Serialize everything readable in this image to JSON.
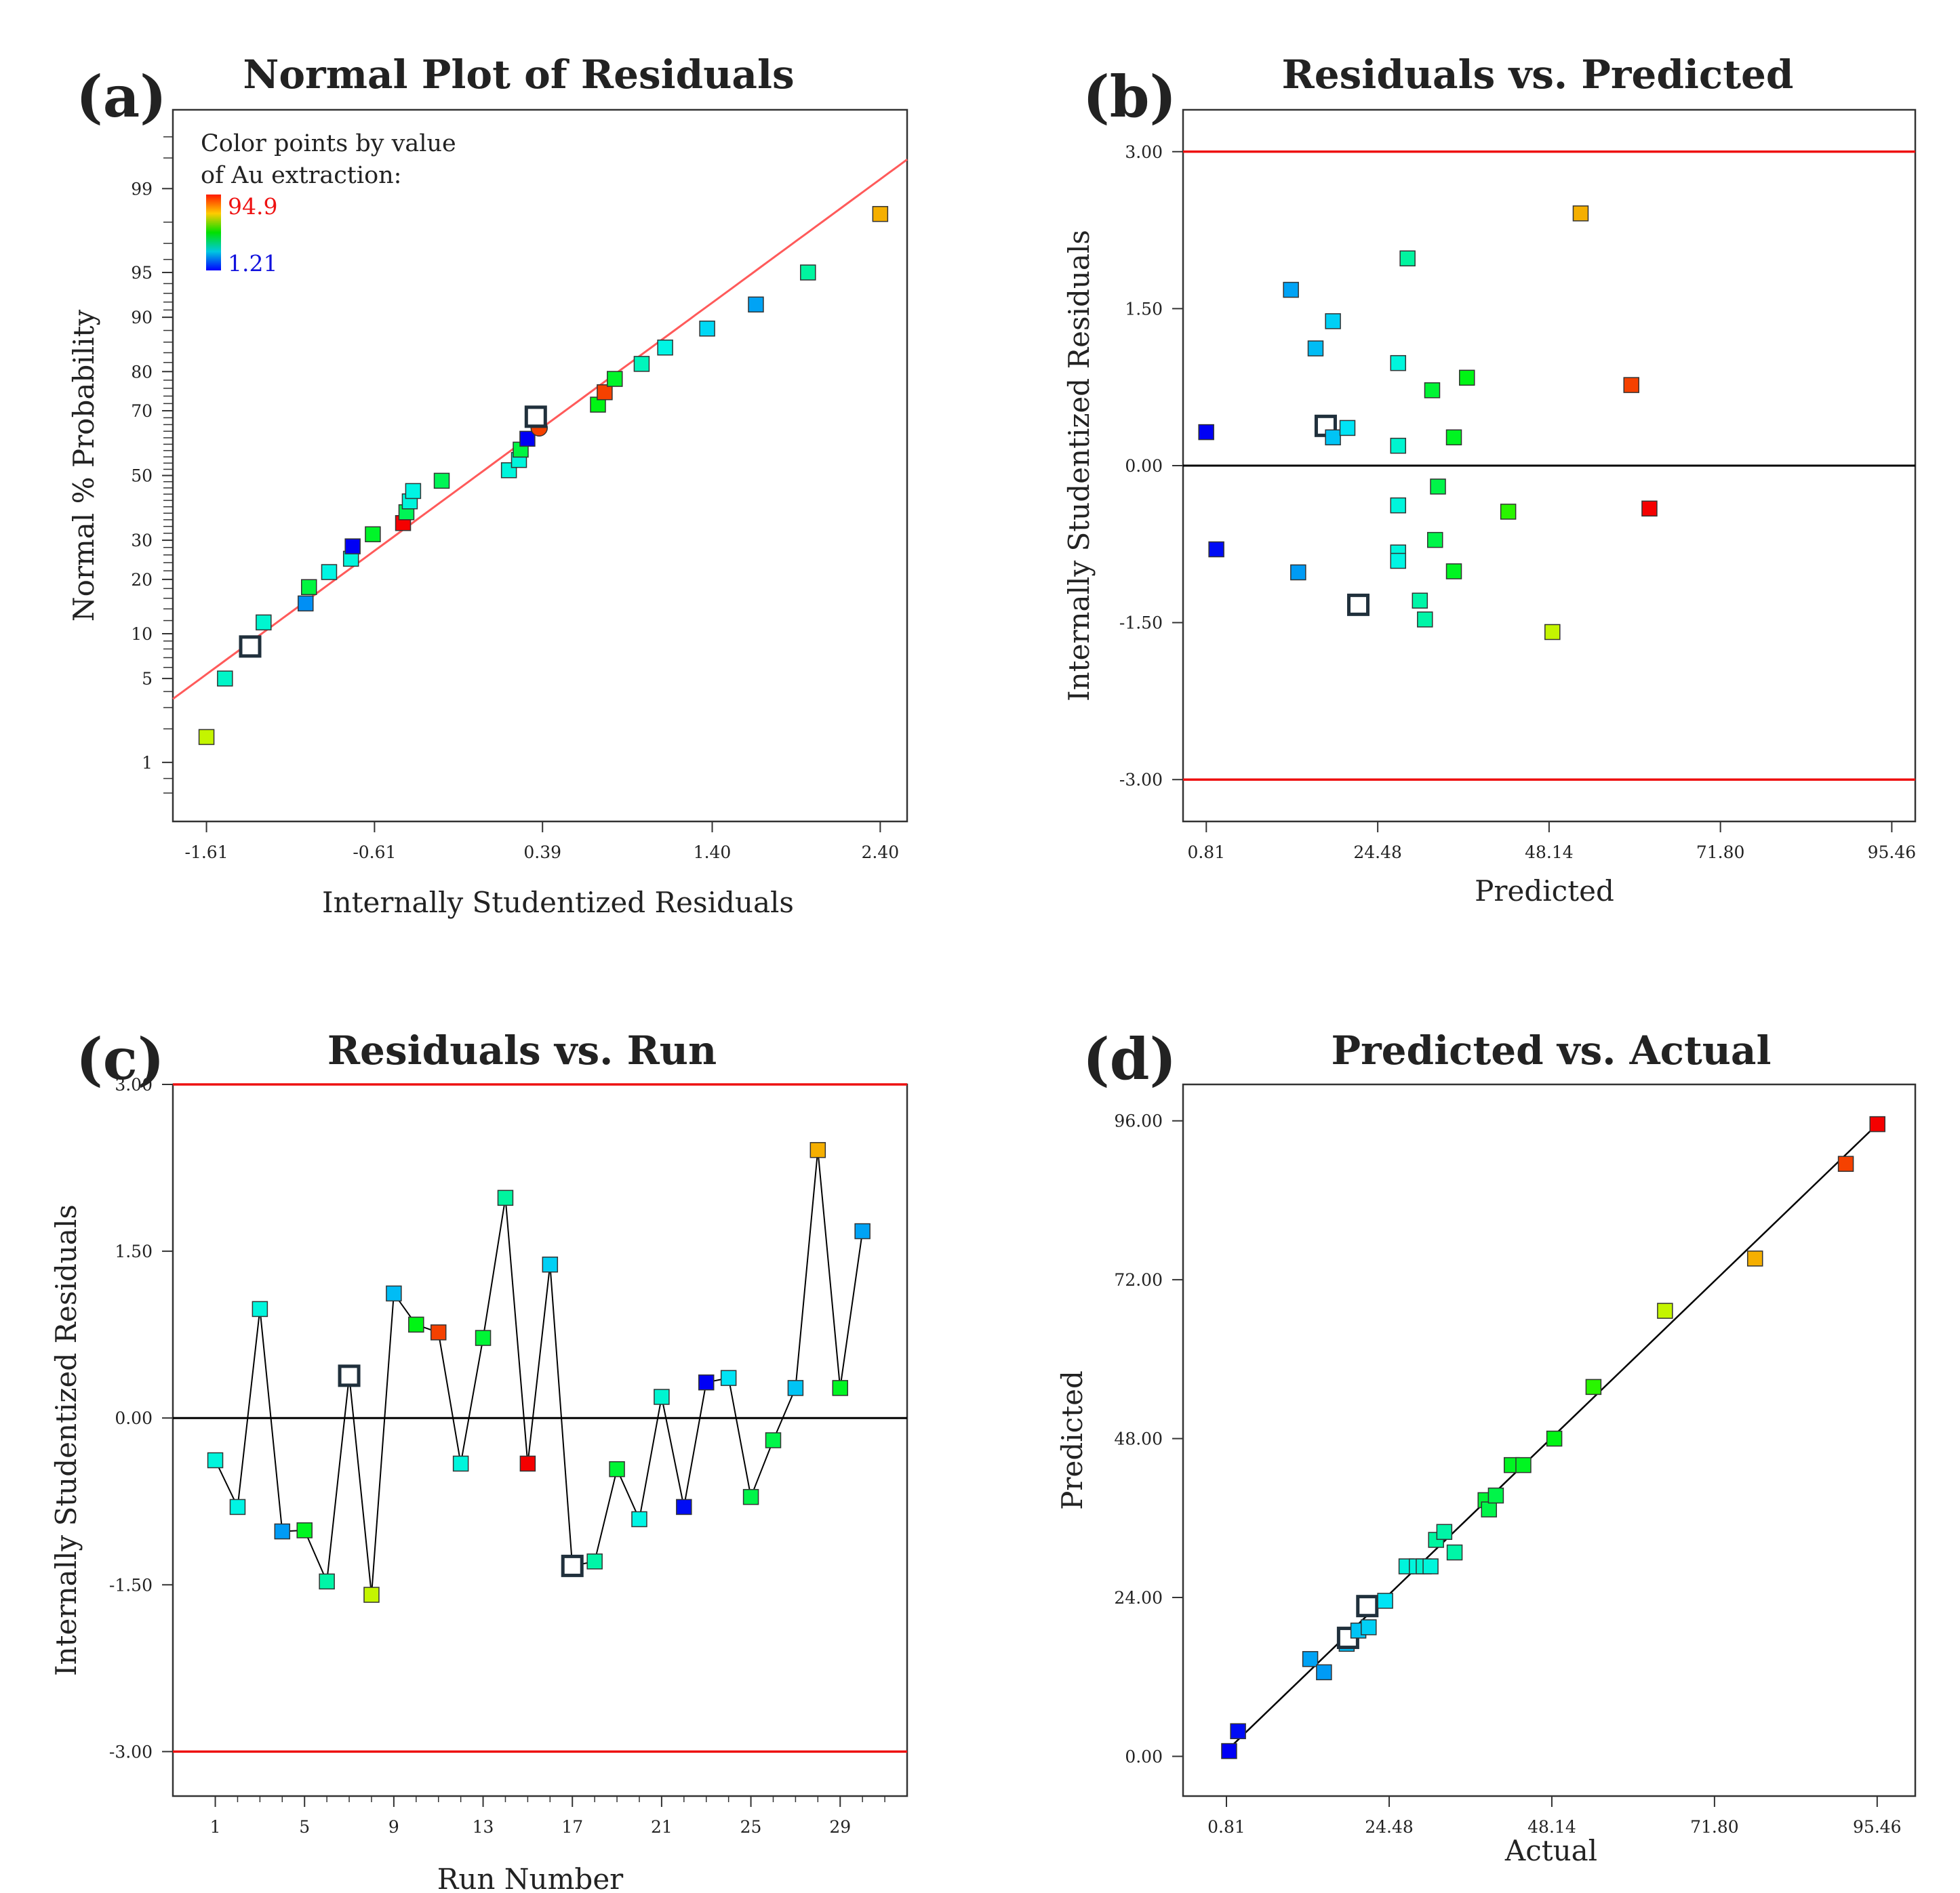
{
  "colors": {
    "refline": "#ff5a5a",
    "limit": "#ee1111",
    "zero": "#000000",
    "axis": "#333333",
    "legend_high": "#ee1111",
    "legend_low": "#1111dd"
  },
  "chart_data": [
    {
      "id": "a",
      "letter": "(a)",
      "type": "scatter",
      "title": "Normal Plot of Residuals",
      "xlabel": "Internally Studentized Residuals",
      "ylabel": "Normal % Probability",
      "xlim": [
        -1.81,
        2.56
      ],
      "ylim": [
        0.25,
        99.85
      ],
      "yscale": "normal-probability",
      "xticks": [
        "-1.61",
        "-0.61",
        "0.39",
        "1.40",
        "2.40"
      ],
      "xtick_values": [
        -1.61,
        -0.61,
        0.39,
        1.4,
        2.4
      ],
      "yticks": [
        "1",
        "5",
        "10",
        "20",
        "30",
        "50",
        "70",
        "80",
        "90",
        "95",
        "99"
      ],
      "ytick_values": [
        1,
        5,
        10,
        20,
        30,
        50,
        70,
        80,
        90,
        95,
        99
      ],
      "reference_line": {
        "mean": 0.0,
        "sd": 1.0
      },
      "legend": {
        "line1": "Color points by value",
        "line2": "of Au extraction:",
        "high": "94.9",
        "low": "1.21"
      },
      "color_range": [
        1.21,
        94.9
      ],
      "points": [
        {
          "x": -1.61,
          "y": 1.7,
          "c": 66.7
        },
        {
          "x": -1.5,
          "y": 5.0,
          "c": 29
        },
        {
          "x": -1.35,
          "y": 8.3,
          "c": null,
          "hollow": true
        },
        {
          "x": -1.27,
          "y": 11.7,
          "c": 28
        },
        {
          "x": -1.02,
          "y": 15.0,
          "c": 15
        },
        {
          "x": -1.0,
          "y": 18.3,
          "c": 42
        },
        {
          "x": -0.88,
          "y": 21.7,
          "c": 26
        },
        {
          "x": -0.75,
          "y": 25.0,
          "c": 27
        },
        {
          "x": -0.74,
          "y": 28.3,
          "c": 1.2
        },
        {
          "x": -0.62,
          "y": 31.7,
          "c": 44
        },
        {
          "x": -0.44,
          "y": 35.0,
          "c": 94.9
        },
        {
          "x": -0.42,
          "y": 38.3,
          "c": 40
        },
        {
          "x": -0.4,
          "y": 41.7,
          "c": 27
        },
        {
          "x": -0.38,
          "y": 45.0,
          "c": 26
        },
        {
          "x": -0.21,
          "y": 48.3,
          "c": 40
        },
        {
          "x": 0.19,
          "y": 51.7,
          "c": 27
        },
        {
          "x": 0.25,
          "y": 55.0,
          "c": 27
        },
        {
          "x": 0.26,
          "y": 58.3,
          "c": 42
        },
        {
          "x": 0.3,
          "y": 61.7,
          "c": 1.3
        },
        {
          "x": 0.37,
          "y": 65.0,
          "c": 88.5,
          "round": true
        },
        {
          "x": 0.35,
          "y": 68.3,
          "c": null,
          "hollow": true
        },
        {
          "x": 0.72,
          "y": 71.7,
          "c": 46
        },
        {
          "x": 0.76,
          "y": 75.0,
          "c": 88.5
        },
        {
          "x": 0.82,
          "y": 78.3,
          "c": 44
        },
        {
          "x": 0.98,
          "y": 81.7,
          "c": 30
        },
        {
          "x": 1.12,
          "y": 85.0,
          "c": 26
        },
        {
          "x": 1.37,
          "y": 88.3,
          "c": 22
        },
        {
          "x": 1.66,
          "y": 91.7,
          "c": 17
        },
        {
          "x": 1.97,
          "y": 95.0,
          "c": 33
        },
        {
          "x": 2.4,
          "y": 98.3,
          "c": 78
        }
      ]
    },
    {
      "id": "b",
      "letter": "(b)",
      "type": "scatter",
      "title": "Residuals vs. Predicted",
      "xlabel": "Predicted",
      "ylabel": "Internally Studentized Residuals",
      "xlim": [
        -2.4,
        98.7
      ],
      "ylim": [
        -3.4,
        3.4
      ],
      "xticks": [
        "0.81",
        "24.48",
        "48.14",
        "71.80",
        "95.46"
      ],
      "xtick_values": [
        0.81,
        24.48,
        48.14,
        71.8,
        95.46
      ],
      "yticks": [
        "-3.00",
        "-1.50",
        "0.00",
        "1.50",
        "3.00"
      ],
      "ytick_values": [
        -3.0,
        -1.5,
        0.0,
        1.5,
        3.0
      ],
      "limit_lines": [
        -3.0,
        3.0
      ],
      "zero_line": 0.0,
      "color_range": [
        1.21,
        94.9
      ],
      "points": [
        {
          "x": 0.8,
          "y": 0.32,
          "c": 1.2
        },
        {
          "x": 2.2,
          "y": -0.8,
          "c": 2.5
        },
        {
          "x": 12.5,
          "y": 1.68,
          "c": 17
        },
        {
          "x": 13.5,
          "y": -1.02,
          "c": 16
        },
        {
          "x": 15.9,
          "y": 1.12,
          "c": 19
        },
        {
          "x": 17.3,
          "y": 0.38,
          "c": null,
          "hollow": true
        },
        {
          "x": 18.3,
          "y": 0.27,
          "c": 20
        },
        {
          "x": 18.3,
          "y": 1.38,
          "c": 21
        },
        {
          "x": 20.3,
          "y": 0.36,
          "c": 23
        },
        {
          "x": 21.8,
          "y": -1.33,
          "c": null,
          "hollow": true
        },
        {
          "x": 27.3,
          "y": 0.98,
          "c": 27
        },
        {
          "x": 27.3,
          "y": 0.19,
          "c": 28
        },
        {
          "x": 27.3,
          "y": -0.38,
          "c": 27
        },
        {
          "x": 27.3,
          "y": -0.83,
          "c": 27
        },
        {
          "x": 27.3,
          "y": -0.91,
          "c": 26
        },
        {
          "x": 28.6,
          "y": 1.98,
          "c": 33
        },
        {
          "x": 30.3,
          "y": -1.29,
          "c": 32
        },
        {
          "x": 31.0,
          "y": -1.47,
          "c": 32
        },
        {
          "x": 32.0,
          "y": 0.72,
          "c": 43
        },
        {
          "x": 32.4,
          "y": -0.71,
          "c": 41
        },
        {
          "x": 32.8,
          "y": -0.2,
          "c": 41
        },
        {
          "x": 35.0,
          "y": 0.27,
          "c": 45
        },
        {
          "x": 35.0,
          "y": -1.01,
          "c": 45
        },
        {
          "x": 36.8,
          "y": 0.84,
          "c": 46
        },
        {
          "x": 42.5,
          "y": -0.44,
          "c": 52
        },
        {
          "x": 48.6,
          "y": -1.59,
          "c": 66.7
        },
        {
          "x": 52.5,
          "y": 2.41,
          "c": 78
        },
        {
          "x": 59.5,
          "y": 0.77,
          "c": 88.5
        },
        {
          "x": 62.0,
          "y": -0.41,
          "c": 94.9
        }
      ]
    },
    {
      "id": "c",
      "letter": "(c)",
      "type": "line",
      "title": "Residuals vs. Run",
      "xlabel": "Run Number",
      "ylabel": "Internally Studentized Residuals",
      "xlim": [
        -0.9,
        32.0
      ],
      "ylim": [
        -3.4,
        3.0
      ],
      "xticks": [
        "1",
        "5",
        "9",
        "13",
        "17",
        "21",
        "25",
        "29"
      ],
      "xtick_values": [
        1,
        5,
        9,
        13,
        17,
        21,
        25,
        29
      ],
      "minor_xticks": [
        2,
        3,
        4,
        6,
        7,
        8,
        10,
        11,
        12,
        14,
        15,
        16,
        18,
        19,
        20,
        22,
        23,
        24,
        26,
        27,
        28,
        30,
        31
      ],
      "yticks": [
        "-3.00",
        "-1.50",
        "0.00",
        "1.50",
        "3.00"
      ],
      "ytick_values": [
        -3.0,
        -1.5,
        0.0,
        1.5,
        3.0
      ],
      "limit_lines": [
        -3.0,
        3.0
      ],
      "zero_line": 0.0,
      "color_range": [
        1.21,
        94.9
      ],
      "points": [
        {
          "x": 1,
          "y": -0.38,
          "c": 27
        },
        {
          "x": 2,
          "y": -0.8,
          "c": 26
        },
        {
          "x": 3,
          "y": 0.98,
          "c": 27
        },
        {
          "x": 4,
          "y": -1.02,
          "c": 16
        },
        {
          "x": 5,
          "y": -1.01,
          "c": 45
        },
        {
          "x": 6,
          "y": -1.47,
          "c": 32
        },
        {
          "x": 7,
          "y": 0.38,
          "c": null,
          "hollow": true
        },
        {
          "x": 8,
          "y": -1.59,
          "c": 66.7
        },
        {
          "x": 9,
          "y": 1.12,
          "c": 19
        },
        {
          "x": 10,
          "y": 0.84,
          "c": 46
        },
        {
          "x": 11,
          "y": 0.77,
          "c": 88.5
        },
        {
          "x": 12,
          "y": -0.41,
          "c": 27
        },
        {
          "x": 13,
          "y": 0.72,
          "c": 43
        },
        {
          "x": 14,
          "y": 1.98,
          "c": 33
        },
        {
          "x": 15,
          "y": -0.41,
          "c": 94.9
        },
        {
          "x": 16,
          "y": 1.38,
          "c": 21
        },
        {
          "x": 17,
          "y": -1.33,
          "c": null,
          "hollow": true
        },
        {
          "x": 18,
          "y": -1.29,
          "c": 32
        },
        {
          "x": 19,
          "y": -0.46,
          "c": 43
        },
        {
          "x": 20,
          "y": -0.91,
          "c": 26
        },
        {
          "x": 21,
          "y": 0.19,
          "c": 28
        },
        {
          "x": 22,
          "y": -0.8,
          "c": 2.5
        },
        {
          "x": 23,
          "y": 0.32,
          "c": 1.2
        },
        {
          "x": 24,
          "y": 0.36,
          "c": 23
        },
        {
          "x": 25,
          "y": -0.71,
          "c": 41
        },
        {
          "x": 26,
          "y": -0.2,
          "c": 41
        },
        {
          "x": 27,
          "y": 0.27,
          "c": 20
        },
        {
          "x": 28,
          "y": 2.41,
          "c": 78
        },
        {
          "x": 29,
          "y": 0.27,
          "c": 45
        },
        {
          "x": 30,
          "y": 1.68,
          "c": 17
        }
      ]
    },
    {
      "id": "d",
      "letter": "(d)",
      "type": "scatter",
      "title": "Predicted vs. Actual",
      "xlabel": "Actual",
      "ylabel": "Predicted",
      "xlim": [
        -5.5,
        101.0
      ],
      "ylim": [
        -6.0,
        101.5
      ],
      "xticks": [
        "0.81",
        "24.48",
        "48.14",
        "71.80",
        "95.46"
      ],
      "xtick_values": [
        0.81,
        24.48,
        48.14,
        71.8,
        95.46
      ],
      "yticks": [
        "0.00",
        "24.00",
        "48.00",
        "72.00",
        "96.00"
      ],
      "ytick_values": [
        0.0,
        24.0,
        48.0,
        72.0,
        96.0
      ],
      "fit_line": [
        [
          0.8,
          0.8
        ],
        [
          95.5,
          95.5
        ]
      ],
      "color_range": [
        1.21,
        94.9
      ],
      "points": [
        {
          "x": 1.2,
          "y": 0.8,
          "c": 1.2
        },
        {
          "x": 2.5,
          "y": 3.8,
          "c": 2.5
        },
        {
          "x": 13.0,
          "y": 14.7,
          "c": 17
        },
        {
          "x": 15.0,
          "y": 12.7,
          "c": 16
        },
        {
          "x": 18.3,
          "y": 17.0,
          "c": 19
        },
        {
          "x": 18.5,
          "y": 17.9,
          "c": null,
          "hollow": true
        },
        {
          "x": 20.0,
          "y": 19.0,
          "c": 20
        },
        {
          "x": 21.5,
          "y": 19.5,
          "c": 21
        },
        {
          "x": 21.3,
          "y": 22.7,
          "c": null,
          "hollow": true
        },
        {
          "x": 23.9,
          "y": 23.5,
          "c": 23
        },
        {
          "x": 27.0,
          "y": 28.7,
          "c": 27
        },
        {
          "x": 28.5,
          "y": 28.7,
          "c": 27
        },
        {
          "x": 29.5,
          "y": 28.7,
          "c": 28
        },
        {
          "x": 30.5,
          "y": 28.7,
          "c": 27
        },
        {
          "x": 31.3,
          "y": 32.7,
          "c": 33
        },
        {
          "x": 32.5,
          "y": 33.9,
          "c": 32
        },
        {
          "x": 34.0,
          "y": 30.8,
          "c": 32
        },
        {
          "x": 38.5,
          "y": 38.7,
          "c": 43
        },
        {
          "x": 39.0,
          "y": 37.3,
          "c": 41
        },
        {
          "x": 40.0,
          "y": 39.4,
          "c": 41
        },
        {
          "x": 42.3,
          "y": 44.0,
          "c": 45
        },
        {
          "x": 44.0,
          "y": 44.0,
          "c": 45
        },
        {
          "x": 48.5,
          "y": 48.0,
          "c": 46
        },
        {
          "x": 54.2,
          "y": 55.8,
          "c": 52
        },
        {
          "x": 64.6,
          "y": 67.3,
          "c": 66.7
        },
        {
          "x": 77.7,
          "y": 75.2,
          "c": 78
        },
        {
          "x": 90.9,
          "y": 89.5,
          "c": 88.5
        },
        {
          "x": 95.5,
          "y": 95.5,
          "c": 94.9
        }
      ]
    }
  ]
}
